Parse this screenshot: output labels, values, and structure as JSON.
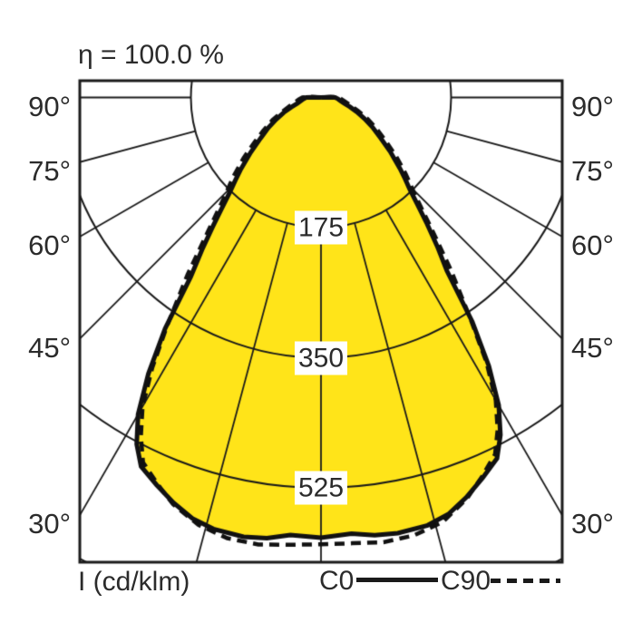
{
  "header": {
    "title": "η = 100.0 %"
  },
  "legend": {
    "axis_label": "I (cd/klm)",
    "series": [
      {
        "label": "C0",
        "style": "solid"
      },
      {
        "label": "C90",
        "style": "dashed"
      }
    ]
  },
  "chart_data": {
    "type": "polar_photometric",
    "title": "η = 100.0 %",
    "efficiency_percent": 100.0,
    "unit": "cd/klm",
    "radial_axis_label": "I (cd/klm)",
    "gamma_axis": {
      "zero_direction": "down",
      "ray_step_deg": 15,
      "labeled_ticks_deg": [
        30,
        45,
        60,
        75,
        90
      ],
      "label_suffix": "°",
      "labels_on_both_sides": true
    },
    "r_axis": {
      "grid_circles": [
        175,
        350,
        525,
        700
      ],
      "labeled_ticks": [
        "175",
        "350",
        "525"
      ],
      "max": 700
    },
    "series": [
      {
        "name": "C0",
        "line": "solid",
        "points": [
          [
            -95,
            0
          ],
          [
            -92,
            12
          ],
          [
            -90,
            20
          ],
          [
            -85,
            24
          ],
          [
            -80,
            28
          ],
          [
            -76,
            33
          ],
          [
            -72,
            42
          ],
          [
            -68,
            54
          ],
          [
            -64,
            67
          ],
          [
            -60,
            82
          ],
          [
            -56,
            98
          ],
          [
            -52,
            120
          ],
          [
            -48,
            146
          ],
          [
            -46,
            160
          ],
          [
            -44,
            176
          ],
          [
            -42,
            198
          ],
          [
            -40,
            226
          ],
          [
            -38,
            260
          ],
          [
            -36,
            298
          ],
          [
            -34,
            375
          ],
          [
            -32,
            438
          ],
          [
            -30,
            492
          ],
          [
            -28,
            528
          ],
          [
            -26,
            552
          ],
          [
            -23,
            566
          ],
          [
            -20,
            580
          ],
          [
            -17,
            592
          ],
          [
            -14,
            598
          ],
          [
            -10,
            600
          ],
          [
            -7,
            597
          ],
          [
            -4,
            590
          ],
          [
            0,
            592
          ],
          [
            4,
            588
          ],
          [
            7,
            593
          ],
          [
            10,
            595
          ],
          [
            14,
            593
          ],
          [
            17,
            586
          ],
          [
            20,
            572
          ],
          [
            23,
            556
          ],
          [
            26,
            540
          ],
          [
            28,
            514
          ],
          [
            30,
            478
          ],
          [
            32,
            426
          ],
          [
            34,
            364
          ],
          [
            36,
            288
          ],
          [
            38,
            254
          ],
          [
            40,
            222
          ],
          [
            42,
            194
          ],
          [
            44,
            172
          ],
          [
            46,
            157
          ],
          [
            48,
            143
          ],
          [
            52,
            118
          ],
          [
            56,
            96
          ],
          [
            60,
            80
          ],
          [
            64,
            65
          ],
          [
            68,
            52
          ],
          [
            72,
            41
          ],
          [
            76,
            32
          ],
          [
            80,
            27
          ],
          [
            85,
            23
          ],
          [
            90,
            19
          ],
          [
            92,
            11
          ],
          [
            95,
            0
          ]
        ]
      },
      {
        "name": "C90",
        "line": "dashed",
        "points": [
          [
            -97,
            0
          ],
          [
            -94,
            14
          ],
          [
            -90,
            25
          ],
          [
            -85,
            30
          ],
          [
            -80,
            35
          ],
          [
            -75,
            43
          ],
          [
            -70,
            55
          ],
          [
            -65,
            72
          ],
          [
            -60,
            90
          ],
          [
            -56,
            108
          ],
          [
            -52,
            132
          ],
          [
            -48,
            158
          ],
          [
            -44,
            188
          ],
          [
            -40,
            238
          ],
          [
            -37,
            298
          ],
          [
            -34,
            370
          ],
          [
            -32,
            428
          ],
          [
            -30,
            480
          ],
          [
            -28,
            516
          ],
          [
            -26,
            546
          ],
          [
            -23,
            564
          ],
          [
            -20,
            582
          ],
          [
            -16,
            598
          ],
          [
            -12,
            606
          ],
          [
            -8,
            607
          ],
          [
            -4,
            603
          ],
          [
            0,
            601
          ],
          [
            4,
            601
          ],
          [
            8,
            604
          ],
          [
            12,
            602
          ],
          [
            16,
            594
          ],
          [
            20,
            574
          ],
          [
            23,
            554
          ],
          [
            26,
            534
          ],
          [
            28,
            506
          ],
          [
            30,
            470
          ],
          [
            32,
            420
          ],
          [
            34,
            360
          ],
          [
            37,
            290
          ],
          [
            40,
            232
          ],
          [
            44,
            182
          ],
          [
            48,
            153
          ],
          [
            52,
            128
          ],
          [
            56,
            105
          ],
          [
            60,
            88
          ],
          [
            65,
            70
          ],
          [
            70,
            53
          ],
          [
            75,
            41
          ],
          [
            80,
            33
          ],
          [
            85,
            28
          ],
          [
            90,
            24
          ],
          [
            94,
            13
          ],
          [
            97,
            0
          ]
        ]
      }
    ],
    "colors": {
      "fill": "#ffe419",
      "grid_line": "#1a1a1a",
      "curve_line": "#111111",
      "text": "#2b2b2b",
      "background": "#ffffff"
    }
  }
}
